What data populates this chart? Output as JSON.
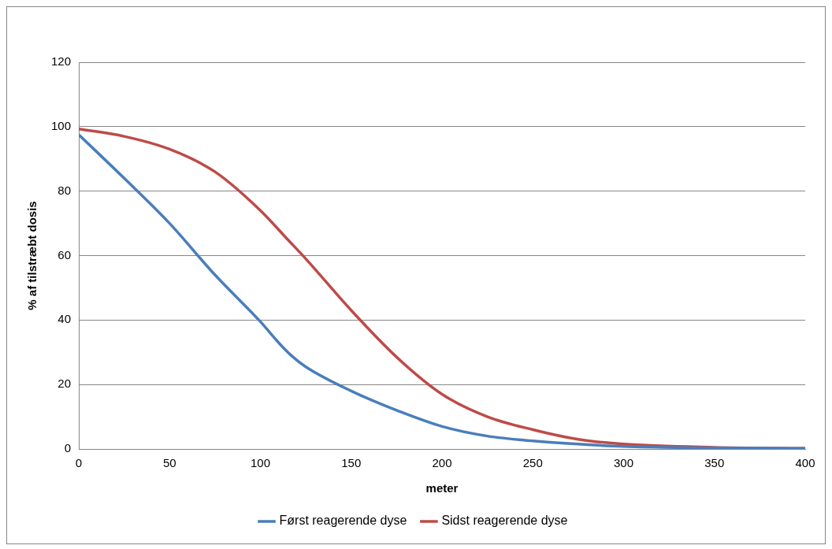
{
  "chart_data": {
    "type": "line",
    "xlabel": "meter",
    "ylabel": "% af tilstræbt dosis",
    "xlim": [
      0,
      400
    ],
    "xticks": [
      0,
      50,
      100,
      150,
      200,
      250,
      300,
      350,
      400
    ],
    "ylim": [
      0,
      120
    ],
    "yticks": [
      0,
      20,
      40,
      60,
      80,
      100,
      120
    ],
    "grid": "y",
    "legend": "bottom",
    "marker": "none",
    "line_style": "solid",
    "series": [
      {
        "name": "Først reagerende dyse",
        "color": "#4a7ebb",
        "x": [
          0,
          25,
          50,
          75,
          100,
          110,
          117,
          125,
          150,
          175,
          200,
          225,
          250,
          275,
          300,
          350,
          400
        ],
        "values": [
          97.5,
          84,
          70,
          54,
          39.5,
          33,
          29,
          25.5,
          18,
          12,
          7,
          4,
          2.5,
          1.5,
          0.8,
          0.3,
          0.2
        ]
      },
      {
        "name": "Sidst reagerende dyse",
        "color": "#be4b48",
        "x": [
          0,
          25,
          50,
          75,
          100,
          115,
          125,
          150,
          175,
          200,
          225,
          250,
          275,
          300,
          350,
          400
        ],
        "values": [
          99.3,
          97,
          93,
          86,
          74,
          65,
          59,
          43,
          28.5,
          17,
          10,
          6,
          3,
          1.5,
          0.5,
          0.2
        ]
      }
    ]
  }
}
